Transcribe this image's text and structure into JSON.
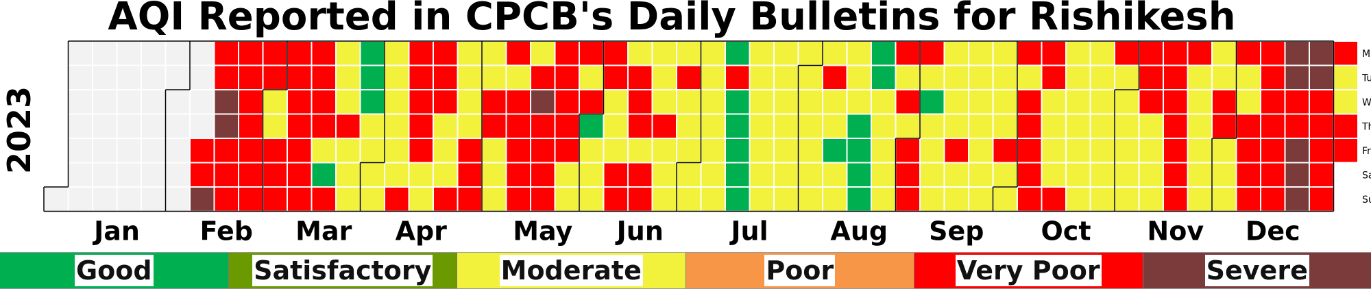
{
  "title": "AQI Reported in CPCB's Daily Bulletins for Rishikesh",
  "chart_data": {
    "type": "heatmap",
    "title": "AQI Reported in CPCB's Daily Bulletins for Rishikesh",
    "year": "2023",
    "start_date": "2023-01-01",
    "weekday_labels": [
      "Mon",
      "Tue",
      "Wed",
      "Thu",
      "Fri",
      "Sat",
      "Sun"
    ],
    "month_labels": [
      "Jan",
      "Feb",
      "Mar",
      "Apr",
      "May",
      "Jun",
      "Jul",
      "Aug",
      "Sep",
      "Oct",
      "Nov",
      "Dec"
    ],
    "categories": [
      "Good",
      "Satisfactory",
      "Moderate",
      "Poor",
      "Very Poor",
      "Severe"
    ],
    "category_colors": {
      "Good": "#00b050",
      "Satisfactory": "#6a9a00",
      "Moderate": "#f2f23c",
      "Poor": "#f79646",
      "Very Poor": "#ff0000",
      "Severe": "#7b3b3b",
      "No Data": "#f2f2f2"
    },
    "weeks": [
      "______N",
      "NNNNNNN",
      "NNNNNNN",
      "NNNNNNN",
      "NNNNNNN",
      "NNNNNNN",
      "NNNNVVS",
      "VVSSVVV",
      "VVVVVVV",
      "VVMMVVV",
      "VVVVVVV",
      "VVVVMGV",
      "MMMVMMM",
      "GGGMMMM",
      "MMMMMMV",
      "VVVVVMM",
      "VVVMMMV",
      "MMMMVVV",
      "MMVVMMM",
      "VMVVVVV",
      "MVSVVVV",
      "VVVVVMM",
      "VMVGMMM",
      "VVMMMVV",
      "MVVVMVV",
      "MMMVMMM",
      "MVMMMMM",
      "MMMMMMM",
      "GVGGGGG",
      "MMMMMMM",
      "MMMMMMM",
      "MMMMMMM",
      "MVMMGMM",
      "MMMGGGG",
      "GGMMMMM",
      "VMVMVVV",
      "VMGMMMM",
      "MMMMVMM",
      "MMMMMMM",
      "MMMMVMM",
      "VMVVVVV",
      "VVMMMMV",
      "MMMMMMM",
      "MMMMMMM",
      "VMMMMMM",
      "VVVMMMM",
      "VVVVVVV",
      "VMMMMMM",
      "MMVVMMM",
      "VMMVVVV",
      "VVVVVVV",
      "SSVVSSS",
      "SSVVVVV",
      "VMMVV__"
    ]
  },
  "legend": [
    {
      "label": "Good",
      "color": "#00b050"
    },
    {
      "label": "Satisfactory",
      "color": "#6a9a00"
    },
    {
      "label": "Moderate",
      "color": "#f2f23c"
    },
    {
      "label": "Poor",
      "color": "#f79646"
    },
    {
      "label": "Very Poor",
      "color": "#ff0000"
    },
    {
      "label": "Severe",
      "color": "#7b3b3b"
    }
  ]
}
